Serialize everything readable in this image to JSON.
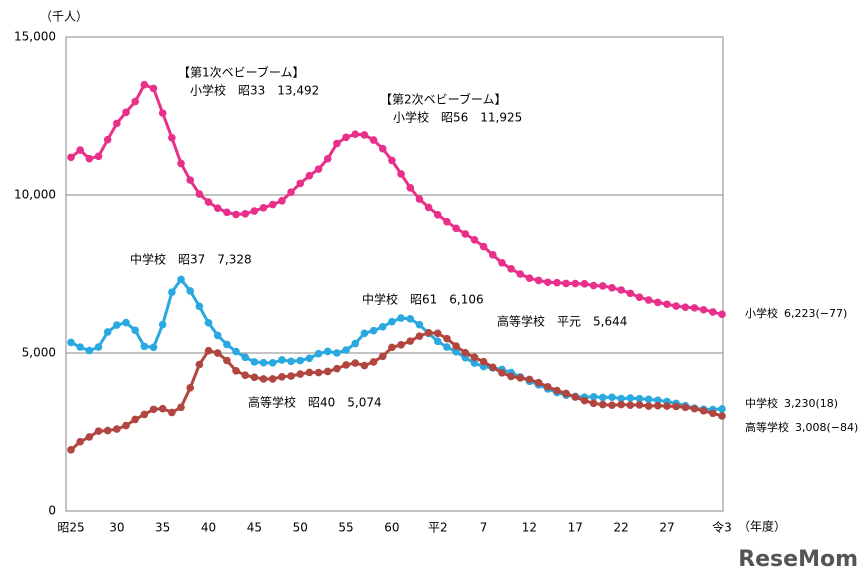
{
  "chart_data": {
    "type": "line",
    "y_unit_label": "（千人）",
    "x_unit_label": "（年度）",
    "watermark": "ReseMom",
    "categories": [
      "昭25",
      null,
      null,
      null,
      null,
      "30",
      null,
      null,
      null,
      null,
      "35",
      null,
      null,
      null,
      null,
      "40",
      null,
      null,
      null,
      null,
      "45",
      null,
      null,
      null,
      null,
      "50",
      null,
      null,
      null,
      null,
      "55",
      null,
      null,
      null,
      null,
      "60",
      null,
      null,
      null,
      null,
      "平2",
      null,
      null,
      null,
      null,
      "7",
      null,
      null,
      null,
      null,
      "12",
      null,
      null,
      null,
      null,
      "17",
      null,
      null,
      null,
      null,
      "22",
      null,
      null,
      null,
      null,
      "27",
      null,
      null,
      null,
      null,
      null,
      "令3"
    ],
    "ylim": [
      0,
      15000
    ],
    "yticks": [
      0,
      {
        "value": 5000,
        "label": "5,000"
      },
      {
        "value": 10000,
        "label": "10,000"
      },
      {
        "value": 15000,
        "label": "15,000"
      }
    ],
    "grid": true,
    "series": [
      {
        "name": "小学校",
        "end_label": "6,223(−77)",
        "color": "#e8308a",
        "values": [
          11191,
          11422,
          11148,
          11225,
          11751,
          12267,
          12616,
          12956,
          13492,
          13374,
          12591,
          11811,
          10999,
          10471,
          10031,
          9776,
          9584,
          9453,
          9383,
          9404,
          9493,
          9596,
          9696,
          9816,
          10089,
          10365,
          10610,
          10819,
          11147,
          11630,
          11827,
          11925,
          11902,
          11739,
          11465,
          11095,
          10666,
          10226,
          9873,
          9607,
          9373,
          9157,
          8947,
          8769,
          8583,
          8370,
          8106,
          7855,
          7664,
          7500,
          7366,
          7297,
          7239,
          7227,
          7201,
          7197,
          7188,
          7133,
          7122,
          7064,
          6994,
          6887,
          6765,
          6677,
          6601,
          6543,
          6484,
          6449,
          6428,
          6369,
          6301,
          6223
        ]
      },
      {
        "name": "中学校",
        "end_label": "3,230(18)",
        "color": "#29a9e0",
        "values": [
          5333,
          5188,
          5077,
          5187,
          5665,
          5884,
          5963,
          5719,
          5210,
          5180,
          5900,
          6925,
          7328,
          6964,
          6476,
          5957,
          5556,
          5271,
          5044,
          4865,
          4717,
          4694,
          4688,
          4780,
          4736,
          4762,
          4833,
          4978,
          5048,
          5000,
          5094,
          5299,
          5623,
          5706,
          5828,
          5990,
          6106,
          6081,
          5896,
          5619,
          5369,
          5188,
          5036,
          4850,
          4681,
          4570,
          4527,
          4481,
          4380,
          4243,
          4104,
          3992,
          3862,
          3748,
          3664,
          3626,
          3602,
          3614,
          3592,
          3600,
          3558,
          3574,
          3553,
          3536,
          3504,
          3465,
          3406,
          3333,
          3252,
          3218,
          3211,
          3230
        ]
      },
      {
        "name": "高等学校",
        "end_label": "3,008(−84)",
        "color": "#b0463f",
        "values": [
          1935,
          2193,
          2343,
          2528,
          2545,
          2592,
          2703,
          2898,
          3057,
          3216,
          3239,
          3119,
          3282,
          3897,
          4634,
          5074,
          4997,
          4763,
          4437,
          4297,
          4232,
          4178,
          4180,
          4247,
          4271,
          4333,
          4386,
          4381,
          4415,
          4504,
          4622,
          4682,
          4601,
          4717,
          4896,
          5178,
          5260,
          5376,
          5534,
          5644,
          5623,
          5455,
          5218,
          5010,
          4862,
          4725,
          4547,
          4372,
          4258,
          4212,
          4165,
          4062,
          3929,
          3810,
          3720,
          3605,
          3495,
          3407,
          3367,
          3348,
          3369,
          3350,
          3356,
          3320,
          3334,
          3320,
          3309,
          3280,
          3236,
          3169,
          3093,
          3008
        ]
      }
    ],
    "annotations": [
      "【第1次ベビーブーム】",
      "小学校　昭33　13,492",
      "【第2次ベビーブーム】",
      "小学校　昭56　11,925",
      "中学校　昭37　7,328",
      "中学校　昭61　6,106",
      "高等学校　平元　5,644",
      "高等学校　昭40　5,074"
    ]
  }
}
